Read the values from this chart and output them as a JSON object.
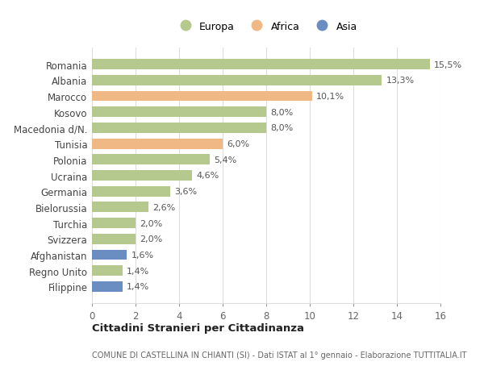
{
  "countries": [
    "Romania",
    "Albania",
    "Marocco",
    "Kosovo",
    "Macedonia d/N.",
    "Tunisia",
    "Polonia",
    "Ucraina",
    "Germania",
    "Bielorussia",
    "Turchia",
    "Svizzera",
    "Afghanistan",
    "Regno Unito",
    "Filippine"
  ],
  "values": [
    15.5,
    13.3,
    10.1,
    8.0,
    8.0,
    6.0,
    5.4,
    4.6,
    3.6,
    2.6,
    2.0,
    2.0,
    1.6,
    1.4,
    1.4
  ],
  "labels": [
    "15,5%",
    "13,3%",
    "10,1%",
    "8,0%",
    "8,0%",
    "6,0%",
    "5,4%",
    "4,6%",
    "3,6%",
    "2,6%",
    "2,0%",
    "2,0%",
    "1,6%",
    "1,4%",
    "1,4%"
  ],
  "continents": [
    "Europa",
    "Europa",
    "Africa",
    "Europa",
    "Europa",
    "Africa",
    "Europa",
    "Europa",
    "Europa",
    "Europa",
    "Europa",
    "Europa",
    "Asia",
    "Europa",
    "Asia"
  ],
  "colors": {
    "Europa": "#b5c98e",
    "Africa": "#f0b884",
    "Asia": "#6b8ec2"
  },
  "title": "Cittadini Stranieri per Cittadinanza",
  "subtitle": "COMUNE DI CASTELLINA IN CHIANTI (SI) - Dati ISTAT al 1° gennaio - Elaborazione TUTTITALIA.IT",
  "xlim": [
    0,
    16
  ],
  "xticks": [
    0,
    2,
    4,
    6,
    8,
    10,
    12,
    14,
    16
  ],
  "background_color": "#ffffff",
  "grid_color": "#dddddd",
  "bar_height": 0.65,
  "label_fontsize": 8.0,
  "ytick_fontsize": 8.5,
  "xtick_fontsize": 8.5
}
